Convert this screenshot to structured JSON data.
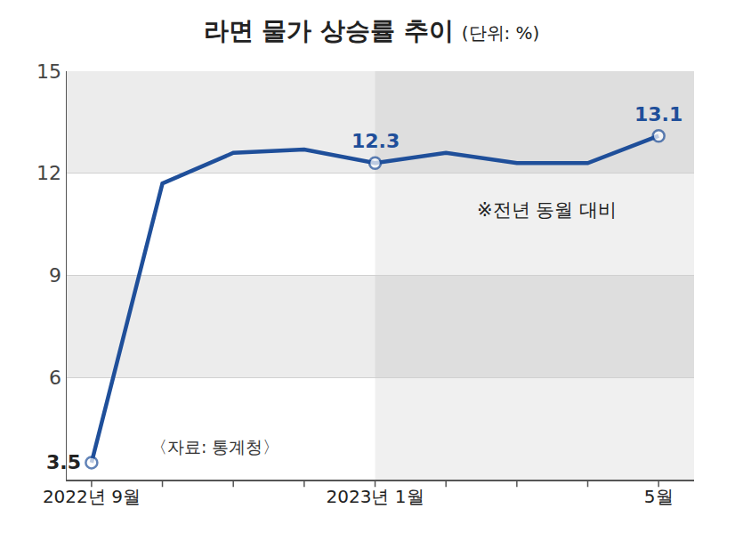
{
  "chart_data": {
    "type": "line",
    "title": "라면 물가 상승률 추이",
    "subtitle": "(단위: %)",
    "categories": [
      "2022년 9월",
      null,
      null,
      null,
      "2023년 1월",
      null,
      null,
      null,
      "5월"
    ],
    "series": [
      {
        "name": "라면 물가 상승률",
        "color": "#1f4f9a",
        "values": [
          3.5,
          11.7,
          12.6,
          12.7,
          12.3,
          12.6,
          12.3,
          12.3,
          13.1
        ],
        "value_labels": [
          "3.5",
          null,
          null,
          null,
          "12.3",
          null,
          null,
          null,
          "13.1"
        ],
        "marker": "circle"
      }
    ],
    "ylim": [
      3,
      15
    ],
    "yticks": [
      6,
      9,
      12,
      15
    ],
    "grid": true,
    "notes": [
      "※전년 동월 대비",
      "〈자료: 통계청〉"
    ]
  }
}
